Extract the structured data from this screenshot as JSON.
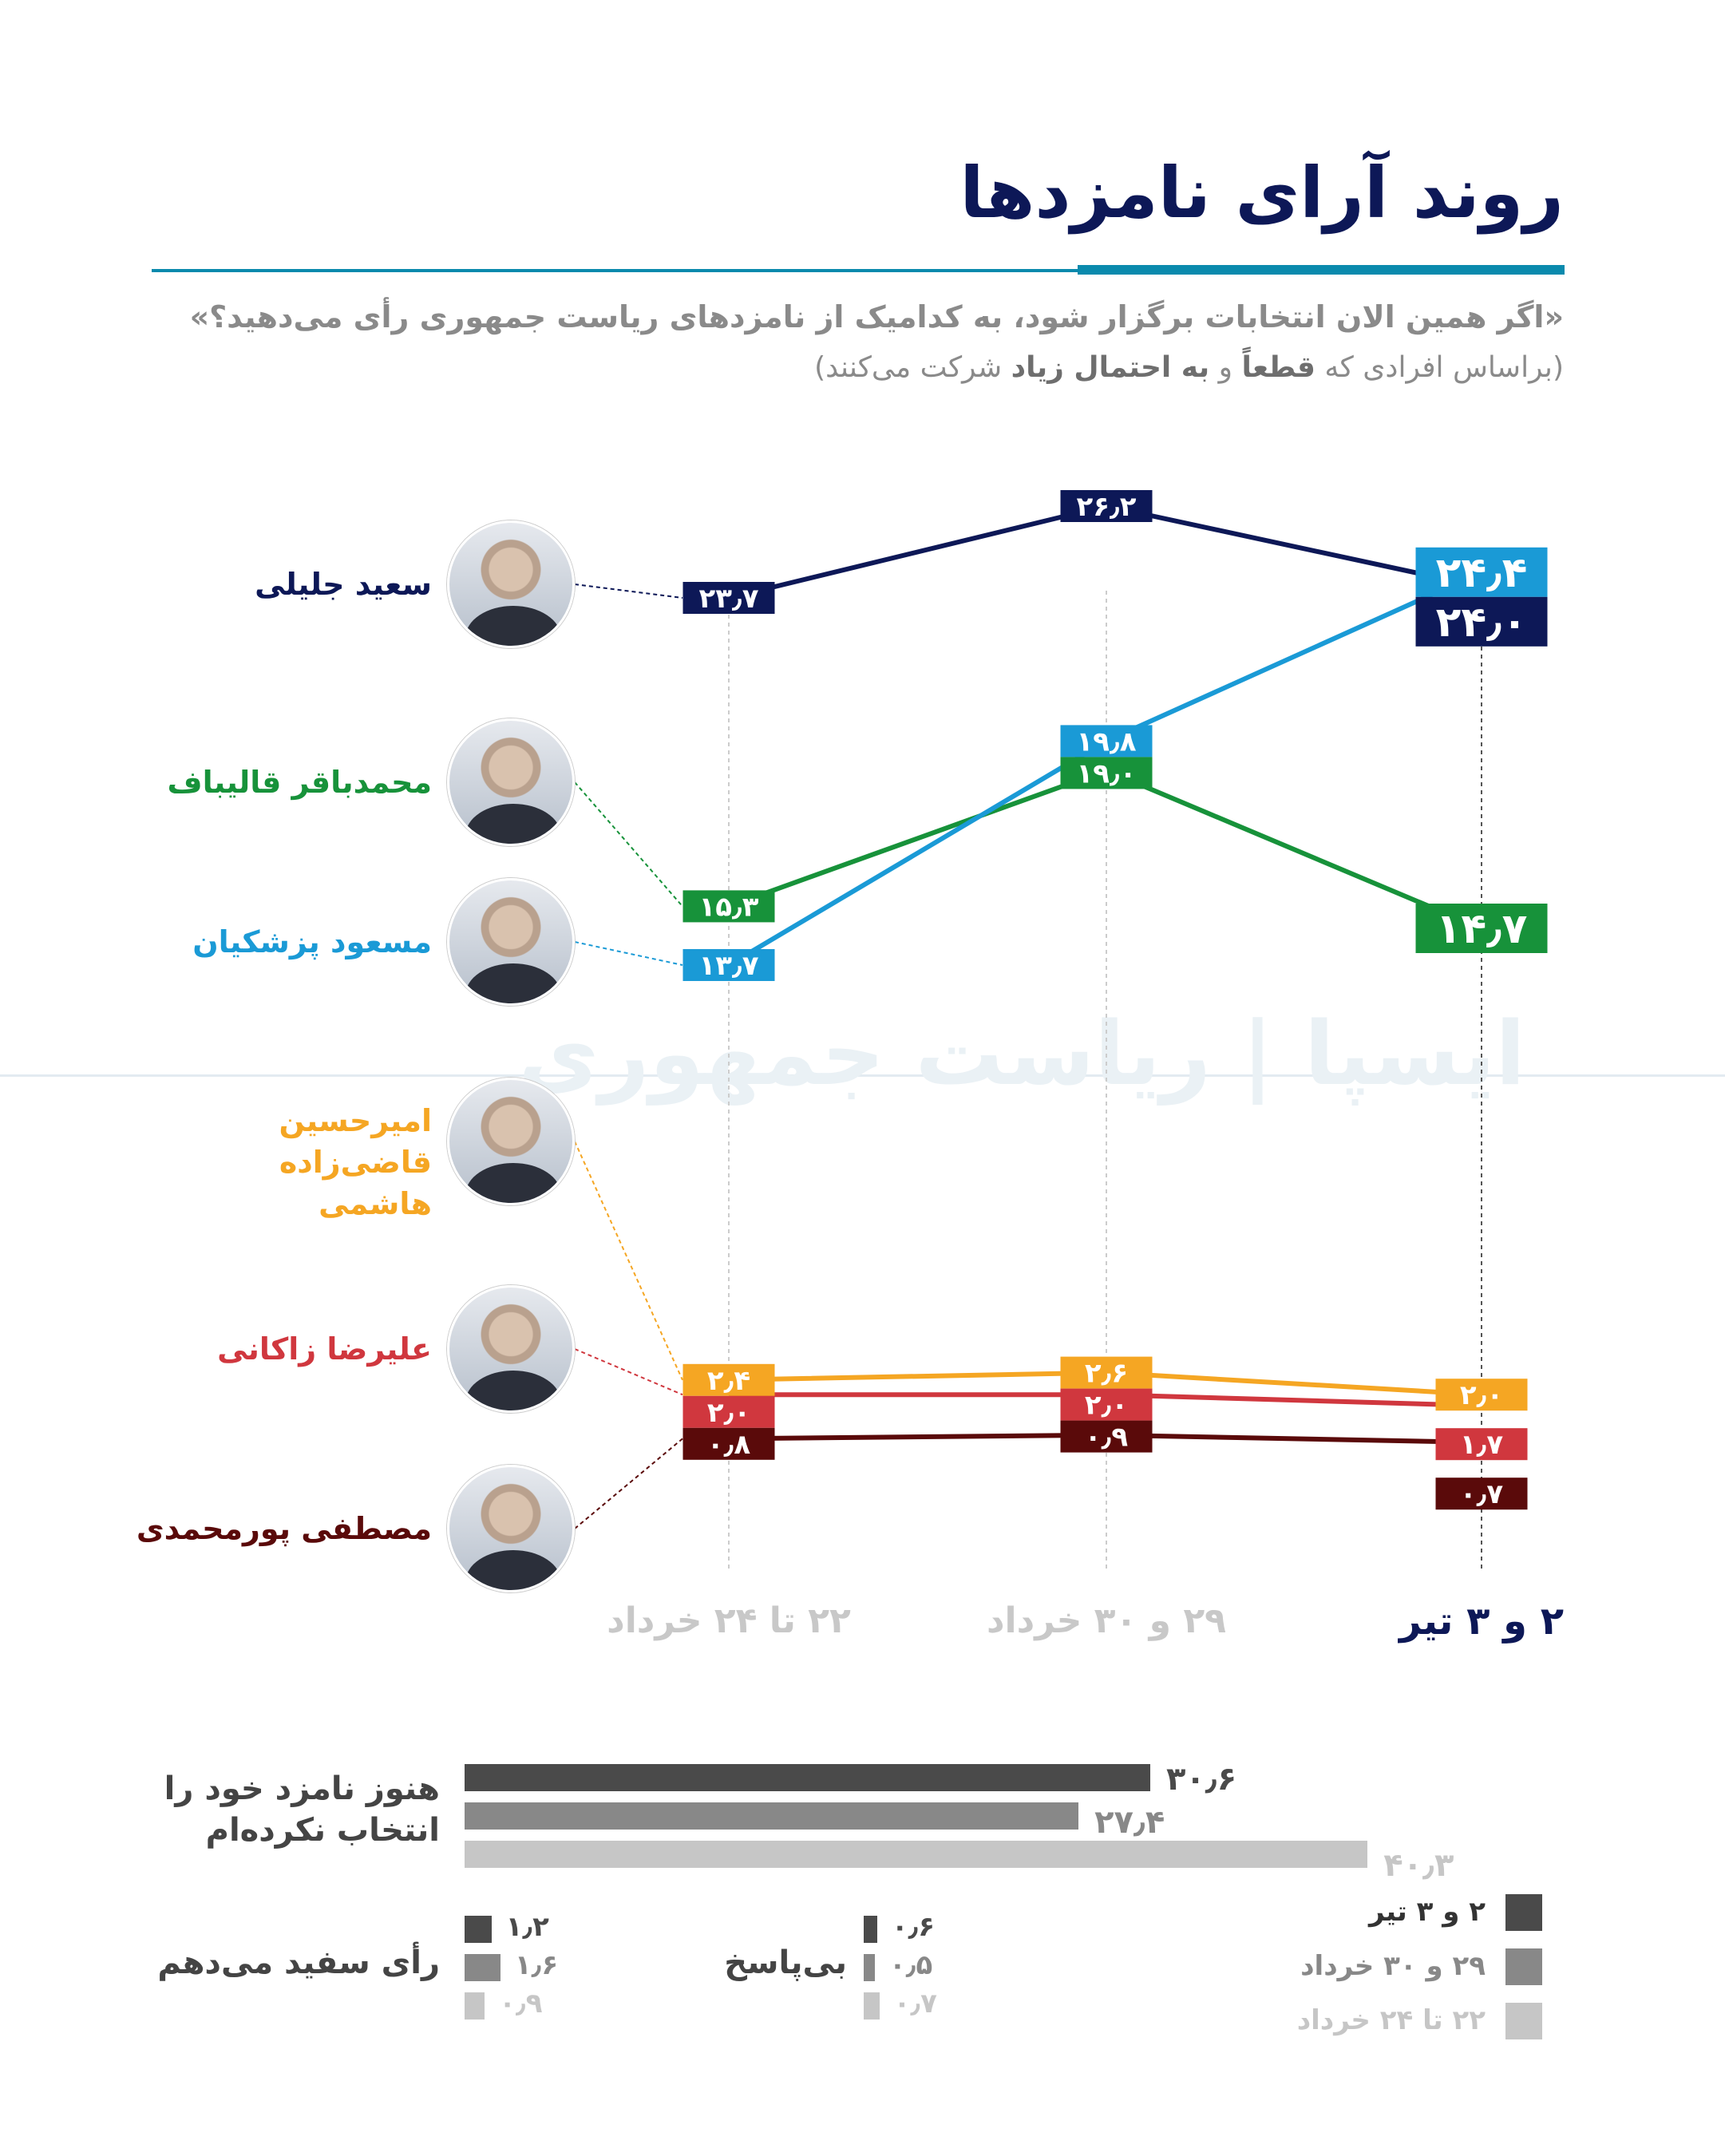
{
  "header": {
    "title": "روند آرای نامزدها",
    "question": "«اگر همین الان انتخابات برگزار شود، به کدامیک از نامزدهای ریاست جمهوری رأی می‌دهید؟»",
    "basis_pre": "(براساس افرادی که",
    "basis_b1": "قطعاً",
    "basis_mid": "و",
    "basis_b2": "به احتمال زیاد",
    "basis_post": "شرکت می‌کنند)"
  },
  "watermark": "ایسپا | ریاست جمهوری",
  "chart_data": [
    {
      "type": "line",
      "categories": [
        "۲۲ تا ۲۴ خرداد",
        "۲۹ و ۳۰ خرداد",
        "۲ و ۳ تیر"
      ],
      "series": [
        {
          "name": "سعید جلیلی",
          "color": "#0d1857",
          "values": [
            23.7,
            26.2,
            24.0
          ]
        },
        {
          "name": "محمدباقر قالیباف",
          "color": "#17923a",
          "values": [
            15.3,
            19.0,
            14.7
          ]
        },
        {
          "name": "مسعود پزشکیان",
          "color": "#1a9ad6",
          "values": [
            13.7,
            19.8,
            24.4
          ]
        },
        {
          "name": "امیرحسین قاضی‌زاده هاشمی",
          "color": "#f5a623",
          "values": [
            2.4,
            2.6,
            2.0
          ]
        },
        {
          "name": "علیرضا زاکانی",
          "color": "#d0373e",
          "values": [
            2.0,
            2.0,
            1.7
          ]
        },
        {
          "name": "مصطفی پورمحمدی",
          "color": "#5a0a0a",
          "values": [
            0.8,
            0.9,
            0.7
          ]
        }
      ]
    },
    {
      "type": "bar",
      "orientation": "horizontal",
      "legend": [
        {
          "name": "۲ و ۳ تیر",
          "color": "#4a4a4a"
        },
        {
          "name": "۲۹ و ۳۰ خرداد",
          "color": "#888888"
        },
        {
          "name": "۲۲ تا ۲۴ خرداد",
          "color": "#c6c6c6"
        }
      ],
      "categories": [
        "هنوز نامزد خود را انتخاب نکرده‌ام",
        "رأی سفید می‌دهم",
        "بی‌پاسخ"
      ],
      "series": [
        {
          "name": "۲ و ۳ تیر",
          "values": [
            30.6,
            1.2,
            0.6
          ]
        },
        {
          "name": "۲۹ و ۳۰ خرداد",
          "values": [
            27.4,
            1.6,
            0.5
          ]
        },
        {
          "name": "۲۲ تا ۲۴ خرداد",
          "values": [
            40.3,
            0.9,
            0.7
          ]
        }
      ]
    }
  ]
}
